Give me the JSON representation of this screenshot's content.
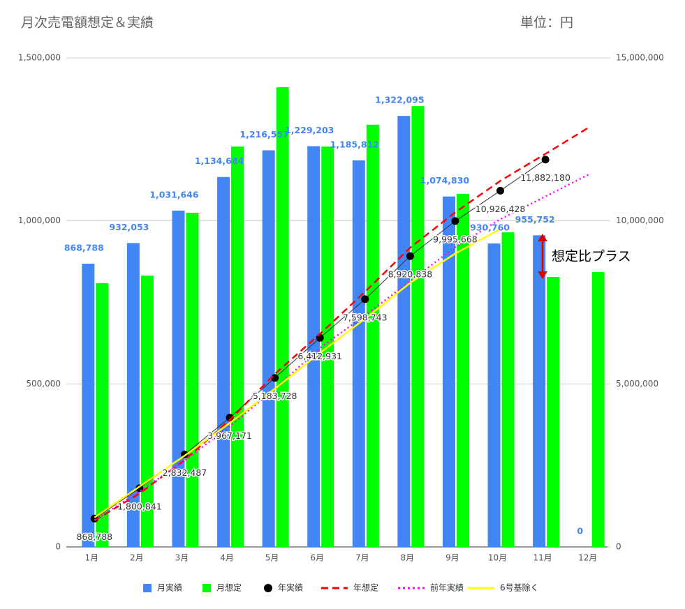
{
  "chart_data": {
    "type": "combo",
    "title": "月次売電額想定＆実績",
    "subtitle": "単位：円",
    "annotation": "想定比プラス",
    "categories": [
      "1月",
      "2月",
      "3月",
      "4月",
      "5月",
      "6月",
      "7月",
      "8月",
      "9月",
      "10月",
      "11月",
      "12月"
    ],
    "ylim": [
      0,
      1500000
    ],
    "yticks": [
      0,
      {
        "value": 500000,
        "label": "500,000"
      },
      {
        "value": 1000000,
        "label": "1,000,000"
      },
      {
        "value": 1500000,
        "label": "1,500,000"
      }
    ],
    "y2lim": [
      0,
      15000000
    ],
    "y2ticks": [
      0,
      {
        "value": 5000000,
        "label": "5,000,000"
      },
      {
        "value": 10000000,
        "label": "10,000,000"
      },
      {
        "value": 15000000,
        "label": "15,000,000"
      }
    ],
    "grid": true,
    "legend": "bottom",
    "series": [
      {
        "name": "月実績",
        "color": "#4285f4",
        "type": "bar",
        "values": [
          868788,
          932053,
          1031646,
          1134684,
          1216557,
          1229203,
          1185812,
          1322095,
          1074830,
          930760,
          955752,
          0
        ],
        "value_labels": [
          "868,788",
          "932,053",
          "1,031,646",
          "1,134,684",
          "1,216,557",
          "1,229,203",
          "1,185,812",
          "1,322,095",
          "1,074,830",
          "930,760",
          "955,752",
          "0"
        ]
      },
      {
        "name": "月想定",
        "color": "#00ff00",
        "type": "bar",
        "values": [
          809000,
          832000,
          1025000,
          1228000,
          1410000,
          1228000,
          1295000,
          1352000,
          1083000,
          965000,
          828000,
          843000
        ]
      },
      {
        "name": "年実績",
        "color": "#000000",
        "type": "line",
        "axis": "y2",
        "style": "markers",
        "values": [
          868788,
          1800841,
          2832487,
          3967171,
          5183728,
          6412931,
          7598743,
          8920838,
          9995668,
          10926428,
          11882180,
          null
        ],
        "value_labels": [
          "868,788",
          "1,800,841",
          "2,832,487",
          "3,967,171",
          "5,183,728",
          "6,412,931",
          "7,598,743",
          "8,920,838",
          "9,995,668",
          "10,926,428",
          "11,882,180",
          null
        ]
      },
      {
        "name": "年想定",
        "color": "#ff0000",
        "type": "line",
        "axis": "y2",
        "style": "dashed",
        "values": [
          809000,
          1641000,
          2666000,
          3894000,
          5304000,
          6532000,
          7827000,
          9179000,
          10262000,
          11227000,
          12055000,
          12898000
        ]
      },
      {
        "name": "前年実績",
        "color": "#ff00ff",
        "type": "line",
        "axis": "y2",
        "style": "dotted",
        "values": [
          820000,
          1700000,
          2650000,
          3700000,
          4850000,
          6100000,
          7100000,
          8150000,
          9200000,
          10050000,
          10750000,
          11450000
        ]
      },
      {
        "name": "6号基除く",
        "color": "#ffff00",
        "type": "line",
        "axis": "y2",
        "style": "solid",
        "values": [
          900000,
          1850000,
          2800000,
          3800000,
          4850000,
          5950000,
          7000000,
          8100000,
          9000000,
          9750000,
          null,
          null
        ]
      }
    ]
  }
}
